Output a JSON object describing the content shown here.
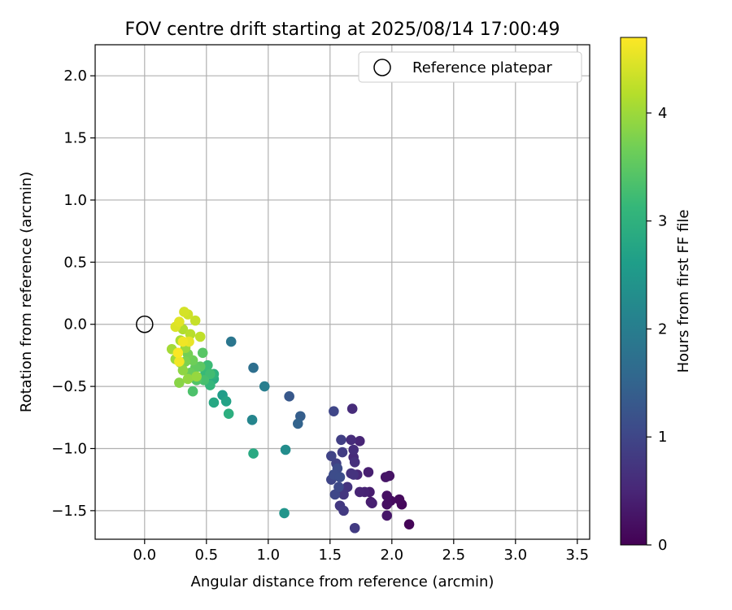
{
  "chart_data": {
    "type": "scatter",
    "title": "FOV centre drift starting at 2025/08/14 17:00:49",
    "xlabel": "Angular distance from reference (arcmin)",
    "ylabel": "Rotation from reference (arcmin)",
    "xlim": [
      -0.4,
      3.6
    ],
    "ylim": [
      -1.73,
      2.25
    ],
    "xticks": [
      0.0,
      0.5,
      1.0,
      1.5,
      2.0,
      2.5,
      3.0,
      3.5
    ],
    "xtick_labels": [
      "0.0",
      "0.5",
      "1.0",
      "1.5",
      "2.0",
      "2.5",
      "3.0",
      "3.5"
    ],
    "yticks": [
      -1.5,
      -1.0,
      -0.5,
      0.0,
      0.5,
      1.0,
      1.5,
      2.0
    ],
    "ytick_labels": [
      "−1.5",
      "−1.0",
      "−0.5",
      "0.0",
      "0.5",
      "1.0",
      "1.5",
      "2.0"
    ],
    "grid": true,
    "legend": {
      "placement": "top-right",
      "entries": [
        "Reference platepar"
      ]
    },
    "reference_point": {
      "x": 0.0,
      "y": 0.0,
      "marker": "open-circle"
    },
    "colorbar": {
      "label": "Hours from first FF file",
      "range": [
        0,
        4.7
      ],
      "ticks": [
        0,
        1,
        2,
        3,
        4
      ],
      "tick_labels": [
        "0",
        "1",
        "2",
        "3",
        "4"
      ],
      "colormap": "viridis",
      "stops": [
        "#440154",
        "#482878",
        "#3e4989",
        "#31688e",
        "#26828e",
        "#1f9e89",
        "#35b779",
        "#6ece58",
        "#b5de2b",
        "#fde725"
      ]
    },
    "series": [
      {
        "values": [
          {
            "x": 2.14,
            "y": -1.61,
            "t": 0.05
          },
          {
            "x": 2.08,
            "y": -1.45,
            "t": 0.1
          },
          {
            "x": 2.06,
            "y": -1.41,
            "t": 0.12
          },
          {
            "x": 1.99,
            "y": -1.42,
            "t": 0.15
          },
          {
            "x": 1.96,
            "y": -1.45,
            "t": 0.2
          },
          {
            "x": 1.96,
            "y": -1.38,
            "t": 0.22
          },
          {
            "x": 1.98,
            "y": -1.22,
            "t": 0.25
          },
          {
            "x": 1.95,
            "y": -1.23,
            "t": 0.28
          },
          {
            "x": 1.96,
            "y": -1.54,
            "t": 0.3
          },
          {
            "x": 1.83,
            "y": -1.43,
            "t": 0.35
          },
          {
            "x": 1.82,
            "y": -1.35,
            "t": 0.38
          },
          {
            "x": 1.81,
            "y": -1.19,
            "t": 0.4
          },
          {
            "x": 1.84,
            "y": -1.44,
            "t": 0.42
          },
          {
            "x": 1.78,
            "y": -1.35,
            "t": 0.45
          },
          {
            "x": 1.74,
            "y": -1.35,
            "t": 0.48
          },
          {
            "x": 1.74,
            "y": -0.94,
            "t": 0.5
          },
          {
            "x": 1.72,
            "y": -1.21,
            "t": 0.52
          },
          {
            "x": 1.69,
            "y": -1.07,
            "t": 0.55
          },
          {
            "x": 1.68,
            "y": -0.68,
            "t": 0.58
          },
          {
            "x": 1.67,
            "y": -0.93,
            "t": 0.6
          },
          {
            "x": 1.69,
            "y": -1.01,
            "t": 0.62
          },
          {
            "x": 1.7,
            "y": -1.11,
            "t": 0.65
          },
          {
            "x": 1.67,
            "y": -1.2,
            "t": 0.68
          },
          {
            "x": 1.69,
            "y": -1.21,
            "t": 0.7
          },
          {
            "x": 1.64,
            "y": -1.31,
            "t": 0.72
          },
          {
            "x": 1.61,
            "y": -1.37,
            "t": 0.75
          },
          {
            "x": 1.58,
            "y": -1.46,
            "t": 0.78
          },
          {
            "x": 1.61,
            "y": -1.5,
            "t": 0.8
          },
          {
            "x": 1.7,
            "y": -1.64,
            "t": 0.82
          },
          {
            "x": 1.6,
            "y": -1.03,
            "t": 0.85
          },
          {
            "x": 1.59,
            "y": -0.93,
            "t": 0.88
          },
          {
            "x": 1.55,
            "y": -1.12,
            "t": 0.9
          },
          {
            "x": 1.55,
            "y": -1.2,
            "t": 0.92
          },
          {
            "x": 1.51,
            "y": -1.06,
            "t": 0.95
          },
          {
            "x": 1.51,
            "y": -1.25,
            "t": 0.98
          },
          {
            "x": 1.53,
            "y": -0.7,
            "t": 1.0
          },
          {
            "x": 1.54,
            "y": -1.37,
            "t": 1.02
          },
          {
            "x": 1.57,
            "y": -1.31,
            "t": 1.05
          },
          {
            "x": 1.56,
            "y": -1.16,
            "t": 1.08
          },
          {
            "x": 1.53,
            "y": -1.21,
            "t": 1.1
          },
          {
            "x": 1.58,
            "y": -1.23,
            "t": 1.12
          },
          {
            "x": 1.17,
            "y": -0.58,
            "t": 1.3
          },
          {
            "x": 1.26,
            "y": -0.74,
            "t": 1.4
          },
          {
            "x": 1.24,
            "y": -0.8,
            "t": 1.5
          },
          {
            "x": 0.88,
            "y": -0.35,
            "t": 1.7
          },
          {
            "x": 0.7,
            "y": -0.14,
            "t": 1.85
          },
          {
            "x": 0.97,
            "y": -0.5,
            "t": 2.0
          },
          {
            "x": 0.87,
            "y": -0.77,
            "t": 2.15
          },
          {
            "x": 1.14,
            "y": -1.01,
            "t": 2.3
          },
          {
            "x": 1.13,
            "y": -1.52,
            "t": 2.45
          },
          {
            "x": 0.88,
            "y": -1.04,
            "t": 2.85
          },
          {
            "x": 0.68,
            "y": -0.72,
            "t": 2.95
          },
          {
            "x": 0.63,
            "y": -0.57,
            "t": 2.6
          },
          {
            "x": 0.66,
            "y": -0.62,
            "t": 2.7
          },
          {
            "x": 0.56,
            "y": -0.63,
            "t": 2.8
          },
          {
            "x": 0.56,
            "y": -0.44,
            "t": 2.9
          },
          {
            "x": 0.56,
            "y": -0.4,
            "t": 3.0
          },
          {
            "x": 0.53,
            "y": -0.49,
            "t": 3.1
          },
          {
            "x": 0.49,
            "y": -0.4,
            "t": 3.15
          },
          {
            "x": 0.51,
            "y": -0.33,
            "t": 3.2
          },
          {
            "x": 0.53,
            "y": -0.4,
            "t": 3.25
          },
          {
            "x": 0.48,
            "y": -0.45,
            "t": 3.3
          },
          {
            "x": 0.39,
            "y": -0.54,
            "t": 3.35
          },
          {
            "x": 0.42,
            "y": -0.45,
            "t": 3.4
          },
          {
            "x": 0.47,
            "y": -0.23,
            "t": 3.45
          },
          {
            "x": 0.45,
            "y": -0.34,
            "t": 3.5
          },
          {
            "x": 0.41,
            "y": -0.35,
            "t": 3.55
          },
          {
            "x": 0.37,
            "y": -0.39,
            "t": 3.6
          },
          {
            "x": 0.36,
            "y": -0.43,
            "t": 3.62
          },
          {
            "x": 0.39,
            "y": -0.29,
            "t": 3.65
          },
          {
            "x": 0.35,
            "y": -0.24,
            "t": 3.7
          },
          {
            "x": 0.33,
            "y": -0.3,
            "t": 3.75
          },
          {
            "x": 0.29,
            "y": -0.31,
            "t": 3.8
          },
          {
            "x": 0.28,
            "y": -0.47,
            "t": 3.85
          },
          {
            "x": 0.31,
            "y": -0.37,
            "t": 3.9
          },
          {
            "x": 0.35,
            "y": -0.44,
            "t": 3.92
          },
          {
            "x": 0.42,
            "y": -0.42,
            "t": 3.95
          },
          {
            "x": 0.33,
            "y": -0.19,
            "t": 3.98
          },
          {
            "x": 0.25,
            "y": -0.28,
            "t": 4.0
          },
          {
            "x": 0.22,
            "y": -0.2,
            "t": 4.05
          },
          {
            "x": 0.29,
            "y": -0.13,
            "t": 4.1
          },
          {
            "x": 0.31,
            "y": -0.04,
            "t": 4.15
          },
          {
            "x": 0.37,
            "y": -0.08,
            "t": 4.2
          },
          {
            "x": 0.45,
            "y": -0.1,
            "t": 4.25
          },
          {
            "x": 0.41,
            "y": 0.03,
            "t": 4.3
          },
          {
            "x": 0.35,
            "y": 0.08,
            "t": 4.35
          },
          {
            "x": 0.32,
            "y": 0.1,
            "t": 4.4
          },
          {
            "x": 0.25,
            "y": -0.02,
            "t": 4.45
          },
          {
            "x": 0.28,
            "y": 0.02,
            "t": 4.5
          },
          {
            "x": 0.36,
            "y": -0.14,
            "t": 4.55
          },
          {
            "x": 0.31,
            "y": -0.14,
            "t": 4.6
          },
          {
            "x": 0.28,
            "y": -0.3,
            "t": 4.62
          },
          {
            "x": 0.27,
            "y": -0.23,
            "t": 4.68
          }
        ]
      }
    ]
  }
}
